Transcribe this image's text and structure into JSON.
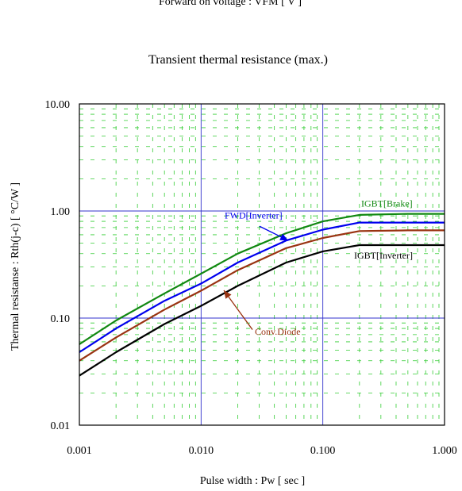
{
  "top_cut_text": "Forward on voltage  :  VFM [ V ]",
  "chart_data": {
    "type": "line",
    "title": "Transient thermal resistance (max.)",
    "xlabel": "Pulse width  :  Pw  [ sec ]",
    "ylabel": "Thermal resistanse  :  Rth(j-c)  [ °C/W ]",
    "x_scale": "log",
    "y_scale": "log",
    "xlim": [
      0.001,
      1.0
    ],
    "ylim": [
      0.01,
      10.0
    ],
    "x_ticks": [
      0.001,
      0.01,
      0.1,
      1.0
    ],
    "x_tick_labels": [
      "0.001",
      "0.010",
      "0.100",
      "1.000"
    ],
    "y_ticks": [
      0.01,
      0.1,
      1.0,
      10.0
    ],
    "y_tick_labels": [
      "0.01",
      "0.10",
      "1.00",
      "10.00"
    ],
    "grid": true,
    "colors": {
      "major_grid": "#3333cc",
      "minor_grid": "#33cc33",
      "frame": "#000000"
    },
    "series": [
      {
        "name": "IGBT[Brake]",
        "color": "#118811",
        "x": [
          0.001,
          0.002,
          0.005,
          0.01,
          0.02,
          0.05,
          0.1,
          0.2,
          0.5,
          1.0
        ],
        "y": [
          0.057,
          0.095,
          0.17,
          0.26,
          0.4,
          0.62,
          0.8,
          0.92,
          0.94,
          0.94
        ]
      },
      {
        "name": "FWD[Inverter]",
        "color": "#0000ee",
        "x": [
          0.001,
          0.002,
          0.005,
          0.01,
          0.02,
          0.05,
          0.1,
          0.2,
          0.5,
          1.0
        ],
        "y": [
          0.048,
          0.08,
          0.145,
          0.21,
          0.33,
          0.53,
          0.67,
          0.78,
          0.78,
          0.78
        ]
      },
      {
        "name": "Conv.Diode",
        "color": "#993311",
        "x": [
          0.001,
          0.002,
          0.005,
          0.01,
          0.02,
          0.05,
          0.1,
          0.2,
          0.5,
          1.0
        ],
        "y": [
          0.04,
          0.066,
          0.12,
          0.18,
          0.28,
          0.45,
          0.56,
          0.65,
          0.66,
          0.66
        ]
      },
      {
        "name": "IGBT[Inverter]",
        "color": "#000000",
        "x": [
          0.001,
          0.002,
          0.005,
          0.01,
          0.02,
          0.05,
          0.1,
          0.2,
          0.5,
          1.0
        ],
        "y": [
          0.029,
          0.048,
          0.088,
          0.13,
          0.2,
          0.33,
          0.42,
          0.48,
          0.48,
          0.48
        ]
      }
    ]
  }
}
